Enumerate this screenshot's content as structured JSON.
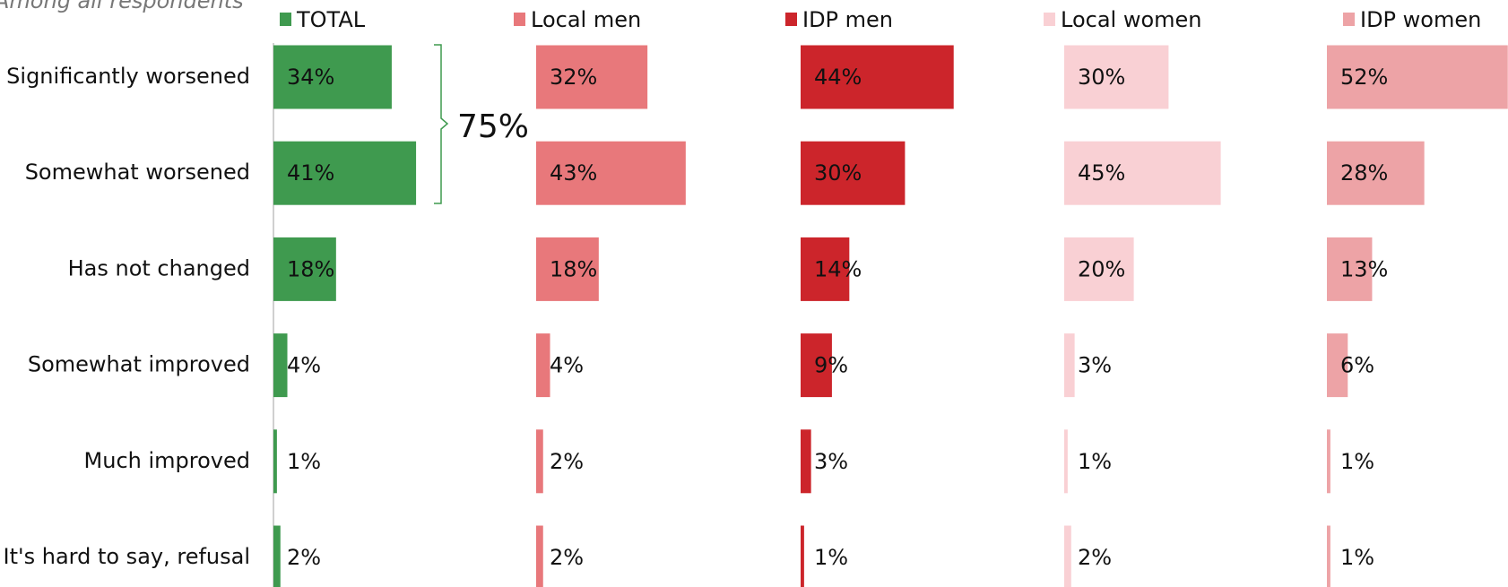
{
  "chart_data": {
    "type": "bar",
    "orientation": "horizontal",
    "subtitle": "Among all respondents",
    "annotation": "75%",
    "categories": [
      "Significantly worsened",
      "Somewhat worsened",
      "Has not changed",
      "Somewhat improved",
      "Much improved",
      "It's hard to say, refusal"
    ],
    "series": [
      {
        "name": "TOTAL",
        "color": "#3f9a4f",
        "values": [
          34,
          41,
          18,
          4,
          1,
          2
        ],
        "value_labels": [
          "34%",
          "41%",
          "18%",
          "4%",
          "1%",
          "2%"
        ]
      },
      {
        "name": "Local men",
        "color": "#e8787b",
        "values": [
          32,
          43,
          18,
          4,
          2,
          2
        ],
        "value_labels": [
          "32%",
          "43%",
          "18%",
          "4%",
          "2%",
          "2%"
        ]
      },
      {
        "name": "IDP men",
        "color": "#cc252b",
        "values": [
          44,
          30,
          14,
          9,
          3,
          1
        ],
        "value_labels": [
          "44%",
          "30%",
          "14%",
          "9%",
          "3%",
          "1%"
        ]
      },
      {
        "name": "Local women",
        "color": "#f9d0d4",
        "values": [
          30,
          45,
          20,
          3,
          1,
          2
        ],
        "value_labels": [
          "30%",
          "45%",
          "20%",
          "3%",
          "1%",
          "2%"
        ]
      },
      {
        "name": "IDP women",
        "color": "#eda3a6",
        "values": [
          52,
          28,
          13,
          6,
          1,
          1
        ],
        "value_labels": [
          "52%",
          "28%",
          "13%",
          "6%",
          "1%",
          "1%"
        ]
      }
    ]
  }
}
